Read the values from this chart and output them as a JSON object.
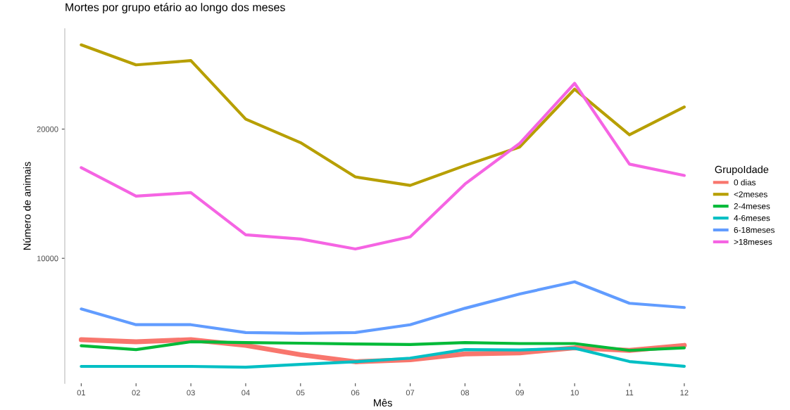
{
  "chart_data": {
    "type": "line",
    "title": "Mortes por grupo etário ao longo dos meses",
    "xlabel": "Mês",
    "ylabel": "Número de animais",
    "legend_title": "GrupoIdade",
    "categories": [
      "01",
      "02",
      "03",
      "04",
      "05",
      "06",
      "07",
      "08",
      "09",
      "10",
      "11",
      "12"
    ],
    "ylim": [
      320,
      27770
    ],
    "yticks": [
      10000,
      20000
    ],
    "grid": false,
    "legend": "right",
    "line_style": "solid",
    "series": [
      {
        "name": "0 dias",
        "color": "#f8766d",
        "values": [
          3700,
          3540,
          3700,
          3260,
          2540,
          1990,
          2150,
          2600,
          2680,
          3070,
          2870,
          3260
        ]
      },
      {
        "name": "<2meses",
        "color": "#b79f00",
        "values": [
          26520,
          24970,
          25300,
          20770,
          18950,
          16300,
          15640,
          17180,
          18620,
          23090,
          19560,
          21710
        ]
      },
      {
        "name": "2-4meses",
        "color": "#00ba38",
        "values": [
          3230,
          2930,
          3540,
          3480,
          3430,
          3370,
          3330,
          3480,
          3400,
          3400,
          2870,
          3070
        ]
      },
      {
        "name": "4-6meses",
        "color": "#00bfc4",
        "values": [
          1630,
          1630,
          1630,
          1570,
          1790,
          1990,
          2270,
          2930,
          2900,
          3040,
          2010,
          1640
        ]
      },
      {
        "name": "6-18meses",
        "color": "#619cff",
        "values": [
          6080,
          4860,
          4860,
          4250,
          4200,
          4250,
          4860,
          6130,
          7240,
          8180,
          6520,
          6190
        ]
      },
      {
        "name": ">18meses",
        "color": "#f564e3",
        "values": [
          17020,
          14810,
          15080,
          11820,
          11490,
          10720,
          11660,
          15750,
          18900,
          23540,
          17290,
          16410
        ]
      }
    ]
  }
}
